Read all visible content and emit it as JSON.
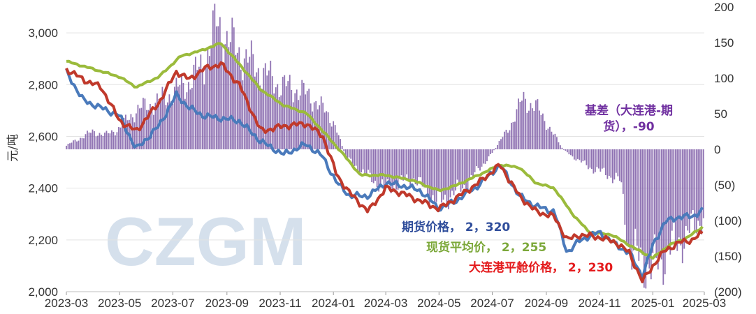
{
  "watermark": "CZGM",
  "chart_data": {
    "type": "line",
    "ylabel_left": "元/吨",
    "ylim_left": [
      2000,
      3100
    ],
    "yticks_left": [
      2000,
      2200,
      2400,
      2600,
      2800,
      3000
    ],
    "yticks_left_labels": [
      "2,000",
      "2,200",
      "2,400",
      "2,600",
      "2,800",
      "3,000"
    ],
    "ylim_right": [
      -200,
      200
    ],
    "yticks_right": [
      -200,
      -150,
      -100,
      -50,
      0,
      50,
      100,
      150,
      200
    ],
    "yticks_right_labels": [
      "(200)",
      "(150)",
      "(100)",
      "(50)",
      "0",
      "50",
      "100",
      "150",
      "200"
    ],
    "xlim": [
      "2023-03-01",
      "2025-03-01"
    ],
    "xticks": [
      "2023-03",
      "2023-05",
      "2023-07",
      "2023-09",
      "2023-11",
      "2024-01",
      "2024-03",
      "2024-05",
      "2024-07",
      "2024-09",
      "2024-11",
      "2025-01",
      "2025-03"
    ],
    "grid": "horizontal",
    "series": [
      {
        "name": "现货平均价",
        "axis": "left",
        "color": "#9bbb3c",
        "x": [
          "2023-03-01",
          "2023-04-01",
          "2023-05-01",
          "2023-05-20",
          "2023-06-15",
          "2023-07-10",
          "2023-08-01",
          "2023-08-25",
          "2023-09-15",
          "2023-10-10",
          "2023-11-05",
          "2023-12-01",
          "2023-12-20",
          "2024-01-10",
          "2024-02-01",
          "2024-03-01",
          "2024-04-01",
          "2024-05-01",
          "2024-05-20",
          "2024-06-15",
          "2024-07-10",
          "2024-08-01",
          "2024-08-20",
          "2024-09-10",
          "2024-10-01",
          "2024-10-20",
          "2024-11-15",
          "2024-12-10",
          "2025-01-01",
          "2025-01-20",
          "2025-02-10",
          "2025-03-01"
        ],
        "values": [
          2890,
          2860,
          2830,
          2790,
          2830,
          2910,
          2930,
          2960,
          2880,
          2780,
          2720,
          2690,
          2620,
          2540,
          2450,
          2450,
          2430,
          2390,
          2410,
          2450,
          2490,
          2480,
          2420,
          2400,
          2300,
          2230,
          2220,
          2170,
          2130,
          2180,
          2210,
          2255
        ]
      },
      {
        "name": "期货价格",
        "axis": "left",
        "color": "#4a7abb",
        "x": [
          "2023-03-01",
          "2023-03-20",
          "2023-04-10",
          "2023-05-01",
          "2023-05-20",
          "2023-06-15",
          "2023-07-05",
          "2023-07-20",
          "2023-08-05",
          "2023-08-25",
          "2023-09-15",
          "2023-10-10",
          "2023-11-05",
          "2023-12-01",
          "2023-12-20",
          "2024-01-05",
          "2024-01-20",
          "2024-02-10",
          "2024-03-01",
          "2024-03-20",
          "2024-04-10",
          "2024-05-01",
          "2024-05-20",
          "2024-06-15",
          "2024-07-10",
          "2024-08-01",
          "2024-08-20",
          "2024-09-10",
          "2024-09-25",
          "2024-10-10",
          "2024-11-01",
          "2024-11-20",
          "2024-12-05",
          "2024-12-20",
          "2025-01-01",
          "2025-01-15",
          "2025-02-01",
          "2025-02-15",
          "2025-03-01"
        ],
        "values": [
          2850,
          2740,
          2710,
          2680,
          2550,
          2640,
          2760,
          2710,
          2680,
          2670,
          2660,
          2580,
          2530,
          2570,
          2520,
          2420,
          2370,
          2370,
          2420,
          2410,
          2390,
          2320,
          2350,
          2410,
          2490,
          2370,
          2330,
          2310,
          2150,
          2200,
          2230,
          2180,
          2150,
          2060,
          2180,
          2270,
          2290,
          2290,
          2320
        ]
      },
      {
        "name": "大连港平舱价格",
        "axis": "left",
        "color": "#c0392b",
        "x": [
          "2023-03-01",
          "2023-03-20",
          "2023-04-10",
          "2023-05-01",
          "2023-05-20",
          "2023-06-15",
          "2023-07-05",
          "2023-07-20",
          "2023-08-05",
          "2023-08-25",
          "2023-09-15",
          "2023-10-10",
          "2023-11-05",
          "2023-12-01",
          "2023-12-20",
          "2024-01-05",
          "2024-01-20",
          "2024-02-10",
          "2024-03-01",
          "2024-03-20",
          "2024-04-10",
          "2024-05-01",
          "2024-05-20",
          "2024-06-15",
          "2024-07-10",
          "2024-08-01",
          "2024-08-20",
          "2024-09-10",
          "2024-09-25",
          "2024-10-10",
          "2024-11-01",
          "2024-11-20",
          "2024-12-05",
          "2024-12-20",
          "2025-01-01",
          "2025-01-15",
          "2025-02-01",
          "2025-02-15",
          "2025-03-01"
        ],
        "values": [
          2860,
          2820,
          2790,
          2660,
          2620,
          2730,
          2850,
          2820,
          2860,
          2880,
          2800,
          2620,
          2640,
          2650,
          2600,
          2450,
          2380,
          2310,
          2400,
          2380,
          2350,
          2320,
          2360,
          2420,
          2490,
          2370,
          2310,
          2290,
          2200,
          2220,
          2210,
          2190,
          2150,
          2040,
          2100,
          2160,
          2190,
          2200,
          2230
        ]
      },
      {
        "name": "基差（大连港-期货）",
        "axis": "right",
        "type": "bar",
        "color": "#7d5ba6",
        "x": [
          "2023-03-01",
          "2023-03-15",
          "2023-04-01",
          "2023-04-15",
          "2023-05-01",
          "2023-05-20",
          "2023-06-10",
          "2023-07-01",
          "2023-07-20",
          "2023-08-05",
          "2023-08-20",
          "2023-09-05",
          "2023-09-20",
          "2023-10-10",
          "2023-11-01",
          "2023-11-20",
          "2023-12-10",
          "2024-01-01",
          "2024-01-15",
          "2024-02-01",
          "2024-03-01",
          "2024-04-01",
          "2024-05-01",
          "2024-06-01",
          "2024-07-01",
          "2024-07-20",
          "2024-08-05",
          "2024-08-20",
          "2024-09-05",
          "2024-09-20",
          "2024-10-01",
          "2024-10-20",
          "2024-11-10",
          "2024-11-25",
          "2024-12-05",
          "2024-12-20",
          "2025-01-05",
          "2025-01-20",
          "2025-02-05",
          "2025-02-20",
          "2025-03-01"
        ],
        "values": [
          5,
          15,
          25,
          20,
          30,
          55,
          65,
          80,
          95,
          120,
          175,
          150,
          130,
          110,
          90,
          85,
          70,
          40,
          -10,
          -30,
          -55,
          -40,
          -75,
          -50,
          -5,
          30,
          70,
          60,
          30,
          0,
          -10,
          -25,
          -35,
          -45,
          -140,
          -160,
          -165,
          -140,
          -125,
          -105,
          -90
        ]
      }
    ],
    "annotations": [
      {
        "text": "基差（大连港-期",
        "color": "#7030a0"
      },
      {
        "text": "货），-90",
        "color": "#7030a0"
      },
      {
        "text": "期货价格， 2，320",
        "color": "#2f4d9b"
      },
      {
        "text": "现货平均价， 2，255",
        "color": "#7ca83a"
      },
      {
        "text": "大连港平舱价格， 2，230",
        "color": "#e41a1c"
      }
    ]
  }
}
